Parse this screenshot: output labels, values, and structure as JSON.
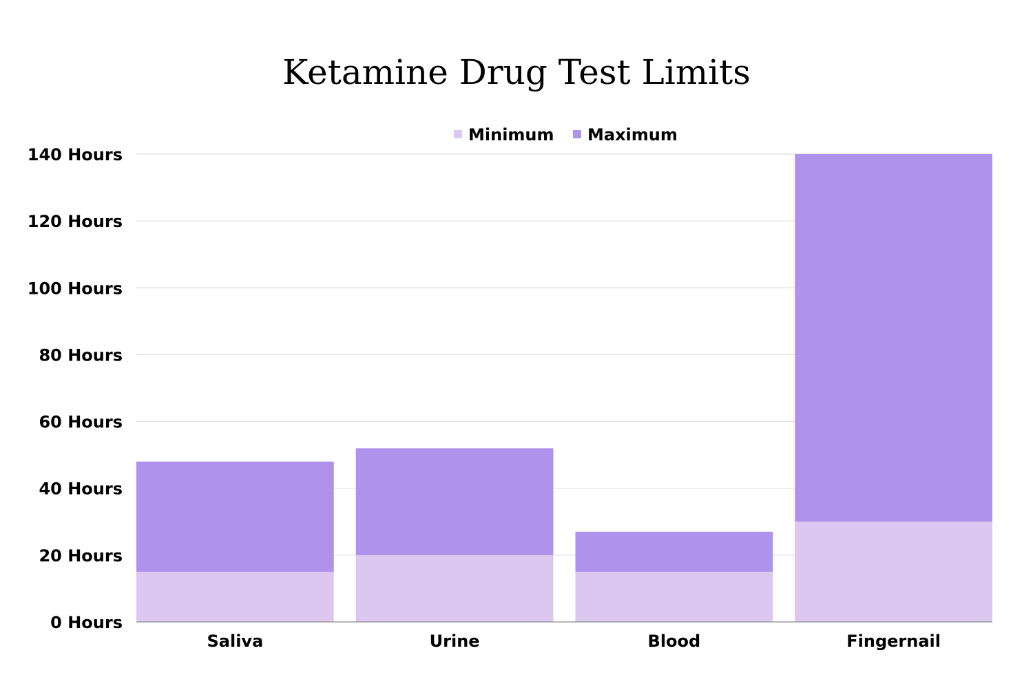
{
  "chart_data": {
    "type": "bar",
    "stacked": true,
    "title": "Ketamine Drug Test Limits",
    "xlabel": "",
    "ylabel": "",
    "categories": [
      "Saliva",
      "Urine",
      "Blood",
      "Fingernail"
    ],
    "series": [
      {
        "name": "Minimum",
        "values": [
          15,
          20,
          15,
          30
        ],
        "color": "#dcc7f0"
      },
      {
        "name": "Maximum",
        "values": [
          33,
          32,
          12,
          110
        ],
        "color": "#ae92ec"
      }
    ],
    "ylim": [
      0,
      140
    ],
    "yticks": [
      0,
      20,
      40,
      60,
      80,
      100,
      120,
      140
    ],
    "ytick_labels": [
      "0 Hours",
      "20 Hours",
      "40 Hours",
      "60 Hours",
      "80 Hours",
      "100 Hours",
      "120 Hours",
      "140 Hours"
    ],
    "grid": true,
    "legend": "top-center"
  }
}
